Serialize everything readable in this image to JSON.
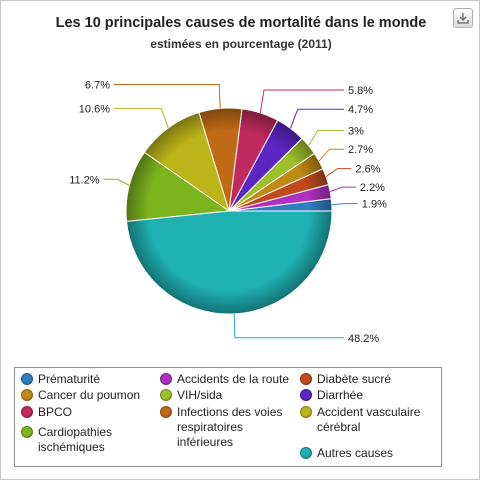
{
  "title": "Les 10 principales causes de mortalité dans le monde",
  "subtitle": "estimées en pourcentage (2011)",
  "export_icon": "download-icon",
  "chart_data": {
    "type": "pie",
    "title": "Les 10 principales causes de mortalité dans le monde",
    "subtitle": "estimées en pourcentage (2011)",
    "legend_position": "bottom",
    "slices": [
      {
        "label": "Prématurité",
        "value": 1.9,
        "value_label": "1.9%",
        "color": "#2f7ec2"
      },
      {
        "label": "Accidents de la route",
        "value": 2.2,
        "value_label": "2.2%",
        "color": "#b030c0"
      },
      {
        "label": "Diabète sucré",
        "value": 2.6,
        "value_label": "2.6%",
        "color": "#c04a1c"
      },
      {
        "label": "Cancer du poumon",
        "value": 2.7,
        "value_label": "2.7%",
        "color": "#c08a16"
      },
      {
        "label": "VIH/sida",
        "value": 3,
        "value_label": "3%",
        "color": "#9cc02a"
      },
      {
        "label": "Diarrhée",
        "value": 4.7,
        "value_label": "4.7%",
        "color": "#5b26c2"
      },
      {
        "label": "BPCO",
        "value": 5.8,
        "value_label": "5.8%",
        "color": "#c02a5e"
      },
      {
        "label": "Infections des voies respiratoires inférieures",
        "value": 6.7,
        "value_label": "6.7%",
        "color": "#c06a16"
      },
      {
        "label": "Accident vasculaire cérébral",
        "value": 10.6,
        "value_label": "10.6%",
        "color": "#bcb418"
      },
      {
        "label": "Cardiopathies ischémiques",
        "value": 11.2,
        "value_label": "11.2%",
        "color": "#7cb41e"
      },
      {
        "label": "Autres causes",
        "value": 48.2,
        "value_label": "48.2%",
        "color": "#1fb0b2"
      }
    ]
  },
  "legend": {
    "items": [
      {
        "label": "Prématurité",
        "color": "#2f7ec2"
      },
      {
        "label": "Accidents de la route",
        "color": "#b030c0"
      },
      {
        "label": "Diabète sucré",
        "color": "#c04a1c"
      },
      {
        "label": "Cancer du poumon",
        "color": "#c08a16"
      },
      {
        "label": "VIH/sida",
        "color": "#9cc02a"
      },
      {
        "label": "Diarrhée",
        "color": "#5b26c2"
      },
      {
        "label": "BPCO",
        "color": "#c02a5e"
      },
      {
        "label": "Infections des voies respiratoires inférieures",
        "color": "#c06a16"
      },
      {
        "label": "Accident vasculaire cérébral",
        "color": "#bcb418"
      },
      {
        "label": "Cardiopathies ischémiques",
        "color": "#7cb41e"
      },
      {
        "label": "Autres causes",
        "color": "#1fb0b2"
      }
    ]
  }
}
